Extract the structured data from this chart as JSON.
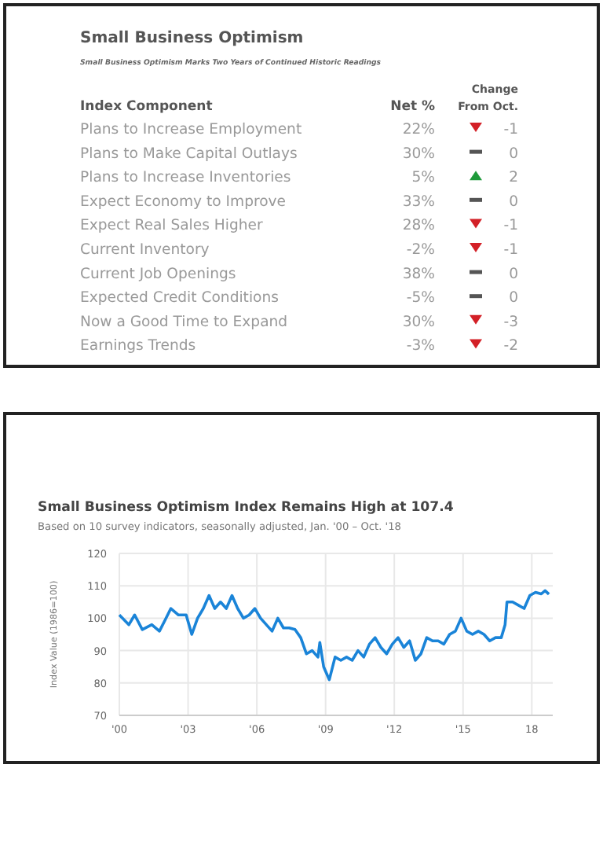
{
  "chart_data": [
    {
      "type": "other",
      "title": "Small Business Optimism",
      "subtitle": "Small Business Optimism Marks Two Years of Continued Historic Readings",
      "ylabel": "Index Component",
      "categories": [
        "Plans to Increase Employment",
        "Plans to Make Capital Outlays",
        "Plans to Increase Inventories",
        "Expect Economy to Improve",
        "Expect Real Sales Higher",
        "Current Inventory",
        "Current Job Openings",
        "Expected Credit Conditions",
        "Now a Good Time to Expand",
        "Earnings Trends"
      ],
      "series": [
        {
          "name": "Net %",
          "values": [
            22,
            30,
            5,
            33,
            28,
            -2,
            38,
            -5,
            30,
            -3
          ],
          "value_labels": [
            "22%",
            "30%",
            "5%",
            "33%",
            "28%",
            "-2%",
            "38%",
            "-5%",
            "30%",
            "-3%"
          ]
        },
        {
          "name": "Change From Oct.",
          "values": [
            -1,
            0,
            2,
            0,
            -1,
            -1,
            0,
            0,
            -3,
            -2
          ],
          "value_labels": [
            "-1",
            "0",
            "2",
            "0",
            "-1",
            "-1",
            "0",
            "0",
            "-3",
            "-2"
          ]
        }
      ]
    },
    {
      "type": "line",
      "title": "Small Business Optimism Index Remains High at 107.4",
      "subtitle": "Based on 10 survey indicators, seasonally adjusted, Jan. '00 – Oct. '18",
      "ylabel": "Index Value (1986=100)",
      "x": [
        "2000-01",
        "2000-06",
        "2000-09",
        "2001-01",
        "2001-06",
        "2001-10",
        "2002-01",
        "2002-04",
        "2002-08",
        "2002-12",
        "2003-03",
        "2003-06",
        "2003-09",
        "2003-12",
        "2004-03",
        "2004-06",
        "2004-09",
        "2004-12",
        "2005-03",
        "2005-06",
        "2005-09",
        "2005-12",
        "2006-03",
        "2006-06",
        "2006-09",
        "2006-12",
        "2007-03",
        "2007-06",
        "2007-09",
        "2007-12",
        "2008-03",
        "2008-06",
        "2008-09",
        "2008-10",
        "2008-12",
        "2009-03",
        "2009-06",
        "2009-09",
        "2009-12",
        "2010-03",
        "2010-06",
        "2010-09",
        "2010-12",
        "2011-03",
        "2011-06",
        "2011-09",
        "2011-12",
        "2012-03",
        "2012-06",
        "2012-09",
        "2012-12",
        "2013-03",
        "2013-06",
        "2013-09",
        "2013-12",
        "2014-03",
        "2014-06",
        "2014-09",
        "2014-12",
        "2015-03",
        "2015-06",
        "2015-09",
        "2015-12",
        "2016-03",
        "2016-06",
        "2016-09",
        "2016-11",
        "2016-12",
        "2017-03",
        "2017-06",
        "2017-09",
        "2017-12",
        "2018-03",
        "2018-06",
        "2018-08",
        "2018-10"
      ],
      "series": [
        {
          "color": "#1a84d8",
          "values": [
            101,
            98,
            101,
            96.5,
            98,
            96,
            99.5,
            103,
            101,
            101,
            95,
            100,
            103,
            107,
            103,
            105,
            103,
            107,
            103,
            100,
            101,
            103,
            100,
            98,
            96,
            100,
            97,
            97,
            96.5,
            94,
            89,
            90,
            88,
            92.5,
            85,
            81,
            88,
            87,
            88,
            87,
            90,
            88,
            92,
            94,
            91,
            89,
            92,
            94,
            91,
            93,
            87,
            89,
            94,
            93,
            93,
            92,
            95,
            96,
            100,
            96,
            95,
            96,
            95,
            93,
            94,
            94,
            98,
            105,
            105,
            104,
            103,
            107,
            108,
            107.5,
            108.5,
            107.4
          ]
        }
      ],
      "xlim": [
        "2000-01",
        "2018-12"
      ],
      "xticks": [
        {
          "value": "2000-01",
          "label": "'00"
        },
        {
          "value": "2003-01",
          "label": "'03"
        },
        {
          "value": "2006-01",
          "label": "'06"
        },
        {
          "value": "2009-01",
          "label": "'09"
        },
        {
          "value": "2012-01",
          "label": "'12"
        },
        {
          "value": "2015-01",
          "label": "'15"
        },
        {
          "value": "2018-01",
          "label": "18"
        }
      ],
      "ylim": [
        70,
        120
      ],
      "yticks": [
        70,
        80,
        90,
        100,
        110,
        120
      ],
      "grid": true,
      "line_style": "solid",
      "marker": "none"
    }
  ]
}
